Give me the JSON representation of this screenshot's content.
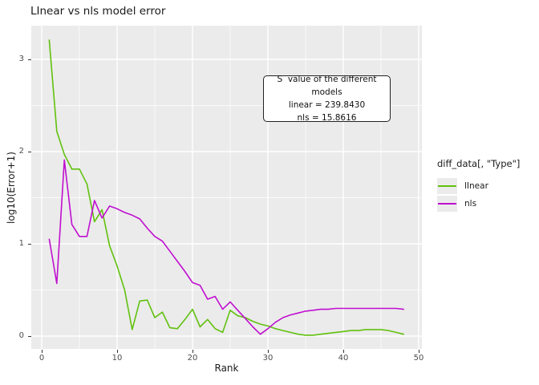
{
  "title": "LInear vs nls model error",
  "annotation": {
    "lines": [
      "S  value of the different models",
      "linear = 239.8430",
      "nls = 15.8616"
    ]
  },
  "legend": {
    "title": "diff_data[, \"Type\"]",
    "items": [
      {
        "label": "lInear",
        "color": "#61C10E"
      },
      {
        "label": "nls",
        "color": "#C00FD0"
      }
    ]
  },
  "chart_data": {
    "type": "line",
    "title": "LInear vs nls model error",
    "xlabel": "Rank",
    "ylabel": "log10(Error+1)",
    "xlim": [
      -1.4,
      50.6
    ],
    "ylim": [
      -0.14,
      3.37
    ],
    "x_ticks": [
      0,
      10,
      20,
      30,
      40,
      50
    ],
    "y_ticks": [
      0,
      1,
      2,
      3
    ],
    "x_minor": [
      5,
      15,
      25,
      35,
      45
    ],
    "y_minor": [
      0.5,
      1.5,
      2.5
    ],
    "grid": true,
    "legend_position": "right",
    "panel_bg": "#EBEBEB",
    "grid_color": "#FFFFFF",
    "x": [
      1,
      2,
      3,
      4,
      5,
      6,
      7,
      8,
      9,
      10,
      11,
      12,
      13,
      14,
      15,
      16,
      17,
      18,
      19,
      20,
      21,
      22,
      23,
      24,
      25,
      26,
      27,
      28,
      29,
      30,
      31,
      32,
      33,
      34,
      35,
      36,
      37,
      38,
      39,
      40,
      41,
      42,
      43,
      44,
      45,
      46,
      47,
      48
    ],
    "series": [
      {
        "name": "lInear",
        "color": "#61C10E",
        "values": [
          3.21,
          2.22,
          1.97,
          1.81,
          1.81,
          1.65,
          1.24,
          1.37,
          0.98,
          0.76,
          0.5,
          0.07,
          0.38,
          0.39,
          0.2,
          0.26,
          0.09,
          0.08,
          0.18,
          0.29,
          0.1,
          0.18,
          0.08,
          0.04,
          0.28,
          0.22,
          0.2,
          0.16,
          0.13,
          0.11,
          0.08,
          0.06,
          0.04,
          0.02,
          0.01,
          0.01,
          0.02,
          0.03,
          0.04,
          0.05,
          0.06,
          0.06,
          0.07,
          0.07,
          0.07,
          0.06,
          0.04,
          0.02
        ]
      },
      {
        "name": "nls",
        "color": "#C00FD0",
        "values": [
          1.05,
          0.57,
          1.91,
          1.21,
          1.08,
          1.08,
          1.47,
          1.28,
          1.41,
          1.38,
          1.34,
          1.31,
          1.27,
          1.17,
          1.08,
          1.03,
          0.92,
          0.81,
          0.7,
          0.58,
          0.55,
          0.4,
          0.43,
          0.29,
          0.37,
          0.28,
          0.19,
          0.1,
          0.02,
          0.08,
          0.15,
          0.2,
          0.23,
          0.25,
          0.27,
          0.28,
          0.29,
          0.29,
          0.3,
          0.3,
          0.3,
          0.3,
          0.3,
          0.3,
          0.3,
          0.3,
          0.3,
          0.29
        ]
      }
    ]
  }
}
